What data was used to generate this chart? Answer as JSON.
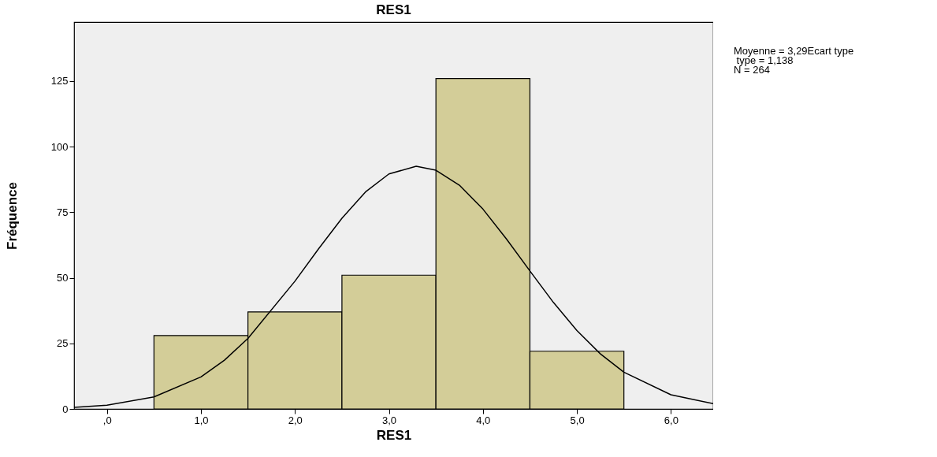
{
  "chart_data": {
    "type": "histogram",
    "title": "RES1",
    "xlabel": "RES1",
    "ylabel": "Fréquence",
    "bins": [
      0.5,
      1.5,
      2.5,
      3.5,
      4.5,
      5.5
    ],
    "values": [
      28,
      37,
      51,
      126,
      22
    ],
    "color": "#d3cd98",
    "series": [
      {
        "type": "line",
        "color": "#000000",
        "x": [
          -0.35,
          0,
          0.5,
          1.0,
          1.25,
          1.5,
          2.0,
          2.25,
          2.5,
          2.75,
          3.0,
          3.29,
          3.5,
          3.75,
          4.0,
          4.25,
          4.5,
          4.75,
          5.0,
          5.25,
          5.5,
          6.0,
          6.45
        ],
        "values": [
          0.6,
          1.4,
          4.6,
          12.2,
          18.6,
          26.9,
          48.7,
          61.0,
          72.7,
          82.7,
          89.6,
          92.5,
          91.0,
          85.3,
          76.2,
          64.8,
          52.6,
          40.6,
          29.9,
          21.0,
          14.0,
          5.4,
          2.0
        ]
      }
    ],
    "xlim": [
      -0.35,
      6.45
    ],
    "ylim": [
      0,
      147.5
    ],
    "xticks": [
      {
        "value": 0,
        "label": ",0"
      },
      {
        "value": 1,
        "label": "1,0"
      },
      {
        "value": 2,
        "label": "2,0"
      },
      {
        "value": 3,
        "label": "3,0"
      },
      {
        "value": 4,
        "label": "4,0"
      },
      {
        "value": 5,
        "label": "5,0"
      },
      {
        "value": 6,
        "label": "6,0"
      }
    ],
    "yticks": [
      0,
      25,
      50,
      75,
      100,
      125
    ],
    "grid": false,
    "annotations": [
      "Moyenne = 3,29Ecart type",
      " type = 1,138",
      "N = 264"
    ]
  }
}
